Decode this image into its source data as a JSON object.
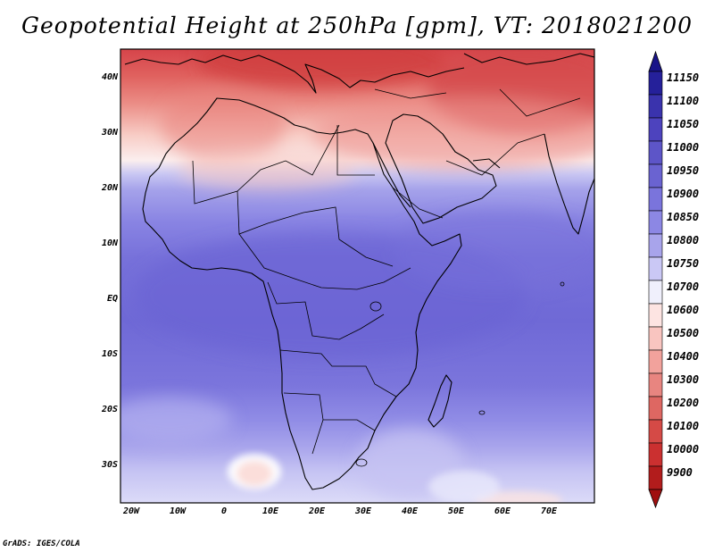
{
  "title": "Geopotential Height at 250hPa [gpm], VT: 2018021200",
  "credit": "GrADS: IGES/COLA",
  "map": {
    "variable": "Geopotential Height",
    "level": "250hPa",
    "units": "gpm",
    "valid_time": "2018021200",
    "region": "Africa"
  },
  "axes": {
    "lat_labels": [
      "40N",
      "30N",
      "20N",
      "10N",
      "EQ",
      "10S",
      "20S",
      "30S"
    ],
    "lon_labels": [
      "20W",
      "10W",
      "0",
      "10E",
      "20E",
      "30E",
      "40E",
      "50E",
      "60E",
      "70E"
    ]
  },
  "colorbar": {
    "labels": [
      "11150",
      "11100",
      "11050",
      "11000",
      "10950",
      "10900",
      "10850",
      "10800",
      "10750",
      "10700",
      "10600",
      "10500",
      "10400",
      "10300",
      "10200",
      "10100",
      "10000",
      "9900"
    ],
    "colors": [
      "#25209a",
      "#3a33ad",
      "#4d43be",
      "#5d55c8",
      "#6a63d1",
      "#7a74dc",
      "#8c87e4",
      "#a8a4eb",
      "#cac8f5",
      "#f0f0fc",
      "#fde4e2",
      "#f9c5c0",
      "#f2a29c",
      "#e88580",
      "#de6762",
      "#d54a46",
      "#cb3030",
      "#b21c1c"
    ],
    "top_arrow_color": "#191489",
    "bottom_arrow_color": "#a00f0f"
  }
}
